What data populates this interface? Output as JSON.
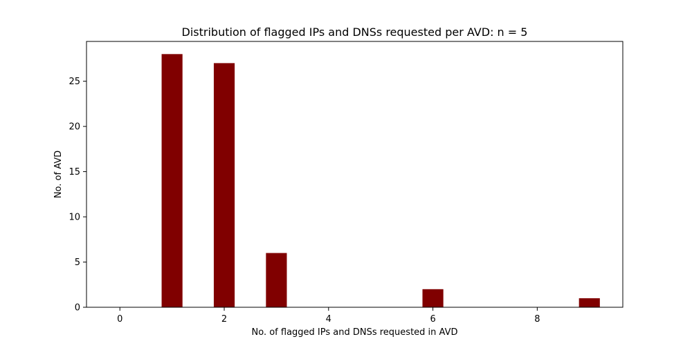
{
  "chart_data": {
    "type": "bar",
    "title": "Distribution of flagged IPs and DNSs requested per AVD: n = 5",
    "xlabel": "No. of flagged IPs and DNSs requested in AVD",
    "ylabel": "No. of AVD",
    "x": [
      1,
      2,
      3,
      6,
      9
    ],
    "values": [
      28,
      27,
      6,
      2,
      1
    ],
    "bar_width": 0.4,
    "xlim": [
      -0.64,
      9.64
    ],
    "ylim": [
      0,
      29.4
    ],
    "xticks": [
      0,
      2,
      4,
      6,
      8
    ],
    "yticks": [
      0,
      5,
      10,
      15,
      20,
      25
    ],
    "bar_color": "#800000",
    "grid": false,
    "legend": "none"
  }
}
